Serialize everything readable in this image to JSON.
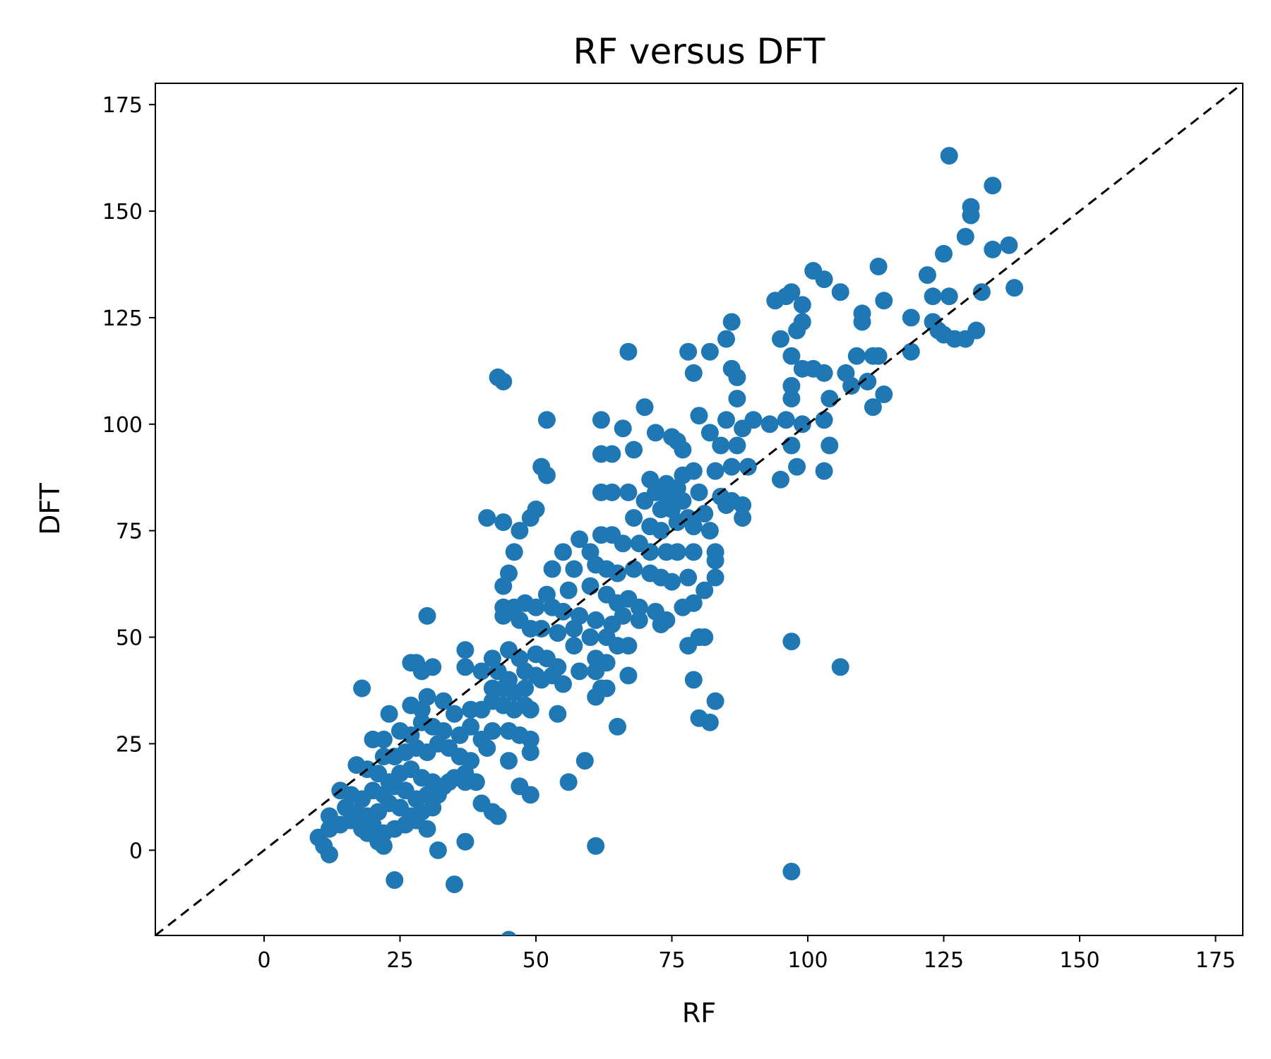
{
  "chart_data": {
    "type": "scatter",
    "title": "RF versus DFT",
    "xlabel": "RF",
    "ylabel": "DFT",
    "xlim": [
      -20,
      180
    ],
    "ylim": [
      -20,
      180
    ],
    "xticks": [
      0,
      25,
      50,
      75,
      100,
      125,
      150,
      175
    ],
    "yticks": [
      0,
      25,
      50,
      75,
      100,
      125,
      150,
      175
    ],
    "xtick_labels": [
      "0",
      "25",
      "50",
      "75",
      "100",
      "125",
      "150",
      "175"
    ],
    "ytick_labels": [
      "0",
      "25",
      "50",
      "75",
      "100",
      "125",
      "150",
      "175"
    ],
    "grid": false,
    "legend": "none",
    "reference_line": {
      "style": "dashed",
      "color": "#000000",
      "from": [
        -20,
        -20
      ],
      "to": [
        180,
        180
      ]
    },
    "series": [
      {
        "color": "#1f77b4",
        "points": [
          [
            126,
            163
          ],
          [
            134,
            156
          ],
          [
            130,
            151
          ],
          [
            130,
            149
          ],
          [
            129,
            144
          ],
          [
            137,
            142
          ],
          [
            134,
            141
          ],
          [
            125,
            140
          ],
          [
            138,
            132
          ],
          [
            101,
            136
          ],
          [
            103,
            134
          ],
          [
            113,
            137
          ],
          [
            122,
            135
          ],
          [
            123,
            130
          ],
          [
            126,
            130
          ],
          [
            132,
            131
          ],
          [
            106,
            131
          ],
          [
            114,
            129
          ],
          [
            97,
            131
          ],
          [
            96,
            130
          ],
          [
            94,
            129
          ],
          [
            99,
            128
          ],
          [
            110,
            126
          ],
          [
            110,
            124
          ],
          [
            86,
            124
          ],
          [
            99,
            124
          ],
          [
            98,
            122
          ],
          [
            95,
            120
          ],
          [
            97,
            116
          ],
          [
            85,
            120
          ],
          [
            119,
            125
          ],
          [
            123,
            124
          ],
          [
            124,
            122
          ],
          [
            125,
            121
          ],
          [
            127,
            120
          ],
          [
            129,
            120
          ],
          [
            131,
            122
          ],
          [
            119,
            117
          ],
          [
            109,
            116
          ],
          [
            112,
            116
          ],
          [
            113,
            116
          ],
          [
            67,
            117
          ],
          [
            78,
            117
          ],
          [
            82,
            117
          ],
          [
            79,
            112
          ],
          [
            86,
            113
          ],
          [
            87,
            111
          ],
          [
            99,
            113
          ],
          [
            101,
            113
          ],
          [
            103,
            112
          ],
          [
            107,
            112
          ],
          [
            111,
            110
          ],
          [
            108,
            109
          ],
          [
            97,
            109
          ],
          [
            97,
            106
          ],
          [
            104,
            106
          ],
          [
            114,
            107
          ],
          [
            112,
            104
          ],
          [
            87,
            106
          ],
          [
            43,
            111
          ],
          [
            44,
            110
          ],
          [
            52,
            101
          ],
          [
            62,
            101
          ],
          [
            70,
            104
          ],
          [
            80,
            102
          ],
          [
            85,
            101
          ],
          [
            88,
            99
          ],
          [
            90,
            101
          ],
          [
            93,
            100
          ],
          [
            96,
            101
          ],
          [
            99,
            100
          ],
          [
            103,
            101
          ],
          [
            66,
            99
          ],
          [
            72,
            98
          ],
          [
            75,
            97
          ],
          [
            76,
            96
          ],
          [
            82,
            98
          ],
          [
            77,
            94
          ],
          [
            84,
            95
          ],
          [
            87,
            95
          ],
          [
            62,
            93
          ],
          [
            64,
            93
          ],
          [
            68,
            94
          ],
          [
            97,
            95
          ],
          [
            104,
            95
          ],
          [
            51,
            90
          ],
          [
            52,
            88
          ],
          [
            95,
            87
          ],
          [
            98,
            90
          ],
          [
            103,
            89
          ],
          [
            71,
            87
          ],
          [
            74,
            86
          ],
          [
            77,
            88
          ],
          [
            79,
            89
          ],
          [
            83,
            89
          ],
          [
            86,
            90
          ],
          [
            89,
            90
          ],
          [
            72,
            84
          ],
          [
            74,
            83
          ],
          [
            76,
            85
          ],
          [
            80,
            84
          ],
          [
            84,
            83
          ],
          [
            86,
            82
          ],
          [
            62,
            84
          ],
          [
            64,
            84
          ],
          [
            67,
            84
          ],
          [
            70,
            82
          ],
          [
            73,
            80
          ],
          [
            75,
            80
          ],
          [
            77,
            82
          ],
          [
            78,
            78
          ],
          [
            81,
            79
          ],
          [
            85,
            81
          ],
          [
            88,
            81
          ],
          [
            88,
            78
          ],
          [
            41,
            78
          ],
          [
            44,
            77
          ],
          [
            49,
            78
          ],
          [
            50,
            80
          ],
          [
            68,
            78
          ],
          [
            71,
            76
          ],
          [
            73,
            75
          ],
          [
            76,
            77
          ],
          [
            79,
            76
          ],
          [
            82,
            75
          ],
          [
            47,
            75
          ],
          [
            62,
            74
          ],
          [
            64,
            74
          ],
          [
            66,
            72
          ],
          [
            69,
            72
          ],
          [
            71,
            70
          ],
          [
            74,
            70
          ],
          [
            76,
            70
          ],
          [
            79,
            70
          ],
          [
            83,
            70
          ],
          [
            58,
            73
          ],
          [
            60,
            70
          ],
          [
            55,
            70
          ],
          [
            46,
            70
          ],
          [
            53,
            66
          ],
          [
            57,
            66
          ],
          [
            61,
            67
          ],
          [
            63,
            66
          ],
          [
            65,
            65
          ],
          [
            68,
            66
          ],
          [
            71,
            65
          ],
          [
            73,
            64
          ],
          [
            75,
            63
          ],
          [
            78,
            64
          ],
          [
            81,
            61
          ],
          [
            83,
            64
          ],
          [
            83,
            68
          ],
          [
            45,
            65
          ],
          [
            44,
            62
          ],
          [
            52,
            60
          ],
          [
            56,
            61
          ],
          [
            60,
            62
          ],
          [
            63,
            60
          ],
          [
            65,
            58
          ],
          [
            67,
            59
          ],
          [
            69,
            57
          ],
          [
            72,
            56
          ],
          [
            74,
            54
          ],
          [
            77,
            57
          ],
          [
            79,
            58
          ],
          [
            44,
            57
          ],
          [
            46,
            57
          ],
          [
            48,
            58
          ],
          [
            50,
            57
          ],
          [
            53,
            57
          ],
          [
            55,
            56
          ],
          [
            58,
            55
          ],
          [
            61,
            54
          ],
          [
            64,
            53
          ],
          [
            66,
            55
          ],
          [
            69,
            54
          ],
          [
            73,
            53
          ],
          [
            30,
            55
          ],
          [
            44,
            55
          ],
          [
            47,
            54
          ],
          [
            49,
            52
          ],
          [
            51,
            52
          ],
          [
            54,
            51
          ],
          [
            57,
            52
          ],
          [
            60,
            50
          ],
          [
            63,
            50
          ],
          [
            65,
            48
          ],
          [
            67,
            48
          ],
          [
            78,
            48
          ],
          [
            80,
            50
          ],
          [
            81,
            50
          ],
          [
            97,
            49
          ],
          [
            37,
            47
          ],
          [
            42,
            45
          ],
          [
            45,
            47
          ],
          [
            47,
            45
          ],
          [
            50,
            46
          ],
          [
            52,
            45
          ],
          [
            57,
            48
          ],
          [
            61,
            45
          ],
          [
            63,
            44
          ],
          [
            27,
            44
          ],
          [
            28,
            44
          ],
          [
            29,
            42
          ],
          [
            31,
            43
          ],
          [
            37,
            43
          ],
          [
            40,
            42
          ],
          [
            43,
            42
          ],
          [
            45,
            40
          ],
          [
            48,
            42
          ],
          [
            50,
            41
          ],
          [
            54,
            43
          ],
          [
            58,
            42
          ],
          [
            61,
            42
          ],
          [
            67,
            41
          ],
          [
            79,
            40
          ],
          [
            106,
            43
          ],
          [
            18,
            38
          ],
          [
            42,
            38
          ],
          [
            44,
            38
          ],
          [
            46,
            37
          ],
          [
            48,
            38
          ],
          [
            51,
            40
          ],
          [
            53,
            41
          ],
          [
            55,
            39
          ],
          [
            62,
            38
          ],
          [
            61,
            36
          ],
          [
            63,
            38
          ],
          [
            23,
            32
          ],
          [
            27,
            34
          ],
          [
            29,
            33
          ],
          [
            30,
            36
          ],
          [
            33,
            35
          ],
          [
            35,
            32
          ],
          [
            38,
            33
          ],
          [
            40,
            33
          ],
          [
            42,
            35
          ],
          [
            44,
            34
          ],
          [
            46,
            33
          ],
          [
            48,
            34
          ],
          [
            49,
            33
          ],
          [
            54,
            32
          ],
          [
            80,
            31
          ],
          [
            83,
            35
          ],
          [
            82,
            30
          ],
          [
            20,
            26
          ],
          [
            22,
            26
          ],
          [
            25,
            28
          ],
          [
            27,
            27
          ],
          [
            29,
            30
          ],
          [
            31,
            29
          ],
          [
            33,
            28
          ],
          [
            36,
            27
          ],
          [
            38,
            29
          ],
          [
            40,
            26
          ],
          [
            42,
            28
          ],
          [
            45,
            28
          ],
          [
            47,
            27
          ],
          [
            49,
            26
          ],
          [
            65,
            29
          ],
          [
            22,
            22
          ],
          [
            24,
            22
          ],
          [
            26,
            23
          ],
          [
            28,
            24
          ],
          [
            30,
            23
          ],
          [
            32,
            25
          ],
          [
            34,
            24
          ],
          [
            36,
            22
          ],
          [
            38,
            21
          ],
          [
            41,
            24
          ],
          [
            45,
            21
          ],
          [
            49,
            23
          ],
          [
            17,
            20
          ],
          [
            19,
            19
          ],
          [
            21,
            18
          ],
          [
            23,
            16
          ],
          [
            25,
            18
          ],
          [
            27,
            19
          ],
          [
            29,
            17
          ],
          [
            31,
            16
          ],
          [
            33,
            15
          ],
          [
            35,
            17
          ],
          [
            37,
            18
          ],
          [
            39,
            16
          ],
          [
            14,
            14
          ],
          [
            16,
            13
          ],
          [
            18,
            12
          ],
          [
            20,
            14
          ],
          [
            22,
            13
          ],
          [
            24,
            15
          ],
          [
            26,
            14
          ],
          [
            28,
            12
          ],
          [
            30,
            13
          ],
          [
            32,
            13
          ],
          [
            34,
            16
          ],
          [
            37,
            16
          ],
          [
            47,
            15
          ],
          [
            49,
            13
          ],
          [
            56,
            16
          ],
          [
            59,
            21
          ],
          [
            15,
            10
          ],
          [
            17,
            9
          ],
          [
            19,
            8
          ],
          [
            21,
            9
          ],
          [
            23,
            11
          ],
          [
            25,
            10
          ],
          [
            27,
            8
          ],
          [
            29,
            9
          ],
          [
            31,
            10
          ],
          [
            40,
            11
          ],
          [
            42,
            9
          ],
          [
            43,
            8
          ],
          [
            12,
            8
          ],
          [
            14,
            6
          ],
          [
            16,
            7
          ],
          [
            18,
            5
          ],
          [
            20,
            6
          ],
          [
            22,
            4
          ],
          [
            24,
            5
          ],
          [
            26,
            6
          ],
          [
            28,
            7
          ],
          [
            30,
            5
          ],
          [
            12,
            5
          ],
          [
            10,
            3
          ],
          [
            11,
            1
          ],
          [
            12,
            -1
          ],
          [
            19,
            4
          ],
          [
            21,
            2
          ],
          [
            22,
            1
          ],
          [
            32,
            0
          ],
          [
            37,
            2
          ],
          [
            61,
            1
          ],
          [
            24,
            -7
          ],
          [
            35,
            -8
          ],
          [
            97,
            -5
          ],
          [
            45,
            -21
          ]
        ]
      }
    ]
  }
}
